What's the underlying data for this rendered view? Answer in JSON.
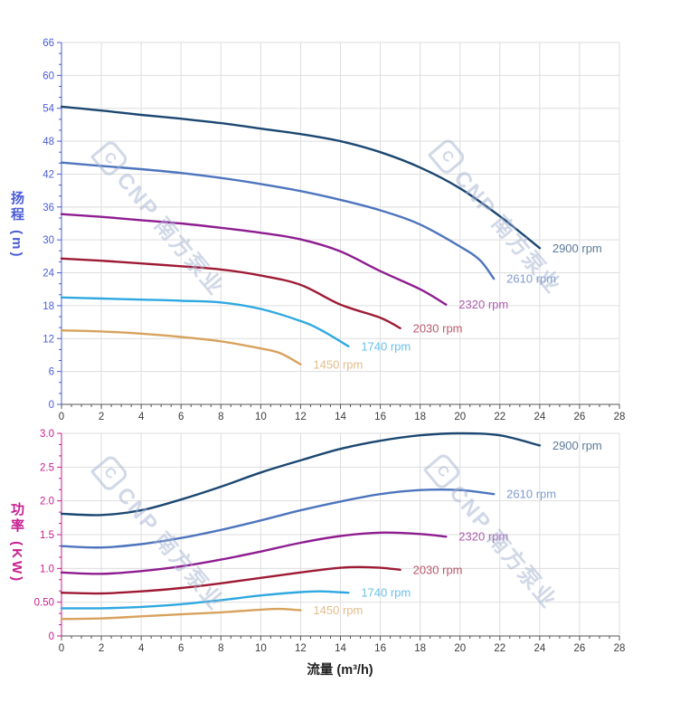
{
  "watermark": {
    "logo": "C",
    "text": "CNP 南方泵业"
  },
  "axes": {
    "head_label": "扬程 (m)",
    "power_label": "功率 (KW)",
    "flow_label": "流量 (m³/h)"
  },
  "colors": {
    "head_axis": "#4a5cd8",
    "power_axis": "#c71e8f",
    "x_axis_text": "#3c3c3c",
    "grid": "#dedede",
    "spine": "#555555",
    "watermark": "#a3b2d0"
  },
  "chart_data": [
    {
      "type": "line",
      "xlabel": "流量 (m³/h)",
      "ylabel": "扬程 (m)",
      "xlim": [
        0,
        28
      ],
      "ylim": [
        0,
        66
      ],
      "x_major_step": 2,
      "x_minor_per_major": 3,
      "y_major_step": 6,
      "y_minor_per_major": 2,
      "grid": true,
      "legend_position": "curve-end-labels",
      "x_tick_labels": [
        "0",
        "2",
        "4",
        "6",
        "8",
        "10",
        "12",
        "14",
        "16",
        "18",
        "20",
        "22",
        "24",
        "26",
        "28"
      ],
      "y_tick_labels": [
        "0",
        "6",
        "12",
        "18",
        "24",
        "30",
        "36",
        "42",
        "48",
        "54",
        "60",
        "66"
      ],
      "series": [
        {
          "name": "2900 rpm",
          "color": "#1b4771",
          "points": [
            [
              0,
              54.3
            ],
            [
              2,
              53.6
            ],
            [
              4,
              52.8
            ],
            [
              6,
              52.1
            ],
            [
              8,
              51.3
            ],
            [
              10,
              50.3
            ],
            [
              12,
              49.3
            ],
            [
              14,
              48
            ],
            [
              16,
              46
            ],
            [
              18,
              43.2
            ],
            [
              20,
              39.4
            ],
            [
              22,
              34.3
            ],
            [
              24,
              28.5
            ]
          ]
        },
        {
          "name": "2610 rpm",
          "color": "#4d74bd",
          "points": [
            [
              0,
              44.1
            ],
            [
              2,
              43.5
            ],
            [
              4,
              42.9
            ],
            [
              6,
              42.2
            ],
            [
              8,
              41.3
            ],
            [
              10,
              40.2
            ],
            [
              12,
              38.9
            ],
            [
              14,
              37.3
            ],
            [
              16,
              35.4
            ],
            [
              18,
              32.8
            ],
            [
              20,
              28.8
            ],
            [
              21,
              26.3
            ],
            [
              21.7,
              22.9
            ]
          ]
        },
        {
          "name": "2320 rpm",
          "color": "#8e1d90",
          "points": [
            [
              0,
              34.7
            ],
            [
              2,
              34.2
            ],
            [
              4,
              33.6
            ],
            [
              6,
              33
            ],
            [
              8,
              32.2
            ],
            [
              10,
              31.3
            ],
            [
              12,
              30.1
            ],
            [
              14,
              27.9
            ],
            [
              16,
              24.3
            ],
            [
              18,
              21
            ],
            [
              19.3,
              18.2
            ]
          ]
        },
        {
          "name": "2030 rpm",
          "color": "#9e1a34",
          "points": [
            [
              0,
              26.6
            ],
            [
              2,
              26.2
            ],
            [
              4,
              25.7
            ],
            [
              6,
              25.2
            ],
            [
              8,
              24.6
            ],
            [
              10,
              23.5
            ],
            [
              12,
              21.8
            ],
            [
              14,
              18.2
            ],
            [
              16,
              15.8
            ],
            [
              17,
              13.9
            ]
          ]
        },
        {
          "name": "1740 rpm",
          "color": "#2fa8e0",
          "points": [
            [
              0,
              19.5
            ],
            [
              2,
              19.3
            ],
            [
              4,
              19.1
            ],
            [
              6,
              18.9
            ],
            [
              8,
              18.6
            ],
            [
              10,
              17.4
            ],
            [
              12,
              15.2
            ],
            [
              13,
              13.6
            ],
            [
              14.4,
              10.6
            ]
          ]
        },
        {
          "name": "1450 rpm",
          "color": "#d7a25d",
          "points": [
            [
              0,
              13.5
            ],
            [
              2,
              13.3
            ],
            [
              4,
              12.9
            ],
            [
              6,
              12.3
            ],
            [
              8,
              11.5
            ],
            [
              10,
              10.2
            ],
            [
              11,
              9.3
            ],
            [
              12,
              7.3
            ]
          ]
        }
      ]
    },
    {
      "type": "line",
      "xlabel": "流量 (m³/h)",
      "ylabel": "功率 (KW)",
      "xlim": [
        0,
        28
      ],
      "ylim": [
        0,
        3
      ],
      "x_major_step": 2,
      "x_minor_per_major": 3,
      "y_major_step": 0.5,
      "y_minor_per_major": 2,
      "grid": true,
      "legend_position": "curve-end-labels",
      "x_tick_labels": [
        "0",
        "2",
        "4",
        "6",
        "8",
        "10",
        "12",
        "14",
        "16",
        "18",
        "20",
        "22",
        "24",
        "26",
        "28"
      ],
      "y_tick_labels": [
        "0",
        "0.50",
        "1.0",
        "1.5",
        "2.0",
        "2.5",
        "3.0"
      ],
      "series": [
        {
          "name": "2900 rpm",
          "color": "#1b4771",
          "points": [
            [
              0,
              1.81
            ],
            [
              2,
              1.79
            ],
            [
              4,
              1.86
            ],
            [
              6,
              2.02
            ],
            [
              8,
              2.21
            ],
            [
              10,
              2.42
            ],
            [
              12,
              2.6
            ],
            [
              14,
              2.77
            ],
            [
              16,
              2.89
            ],
            [
              18,
              2.97
            ],
            [
              20,
              3
            ],
            [
              22,
              2.97
            ],
            [
              24,
              2.82
            ]
          ]
        },
        {
          "name": "2610 rpm",
          "color": "#4d74bd",
          "points": [
            [
              0,
              1.33
            ],
            [
              2,
              1.31
            ],
            [
              4,
              1.36
            ],
            [
              6,
              1.45
            ],
            [
              8,
              1.57
            ],
            [
              10,
              1.71
            ],
            [
              12,
              1.86
            ],
            [
              14,
              1.99
            ],
            [
              16,
              2.1
            ],
            [
              18,
              2.16
            ],
            [
              20,
              2.16
            ],
            [
              21.7,
              2.1
            ]
          ]
        },
        {
          "name": "2320 rpm",
          "color": "#8e1d90",
          "points": [
            [
              0,
              0.94
            ],
            [
              2,
              0.92
            ],
            [
              4,
              0.96
            ],
            [
              6,
              1.03
            ],
            [
              8,
              1.13
            ],
            [
              10,
              1.25
            ],
            [
              12,
              1.38
            ],
            [
              14,
              1.48
            ],
            [
              16,
              1.53
            ],
            [
              18,
              1.51
            ],
            [
              19.3,
              1.47
            ]
          ]
        },
        {
          "name": "2030 rpm",
          "color": "#9e1a34",
          "points": [
            [
              0,
              0.64
            ],
            [
              2,
              0.63
            ],
            [
              4,
              0.66
            ],
            [
              6,
              0.71
            ],
            [
              8,
              0.78
            ],
            [
              10,
              0.86
            ],
            [
              12,
              0.94
            ],
            [
              14,
              1.01
            ],
            [
              15,
              1.02
            ],
            [
              16,
              1.01
            ],
            [
              17,
              0.98
            ]
          ]
        },
        {
          "name": "1740 rpm",
          "color": "#2fa8e0",
          "points": [
            [
              0,
              0.41
            ],
            [
              2,
              0.41
            ],
            [
              4,
              0.43
            ],
            [
              6,
              0.47
            ],
            [
              8,
              0.53
            ],
            [
              10,
              0.6
            ],
            [
              12,
              0.65
            ],
            [
              13,
              0.66
            ],
            [
              14.4,
              0.64
            ]
          ]
        },
        {
          "name": "1450 rpm",
          "color": "#d7a25d",
          "points": [
            [
              0,
              0.25
            ],
            [
              2,
              0.26
            ],
            [
              4,
              0.29
            ],
            [
              6,
              0.32
            ],
            [
              8,
              0.35
            ],
            [
              10,
              0.39
            ],
            [
              11,
              0.4
            ],
            [
              12,
              0.38
            ]
          ]
        }
      ]
    }
  ]
}
